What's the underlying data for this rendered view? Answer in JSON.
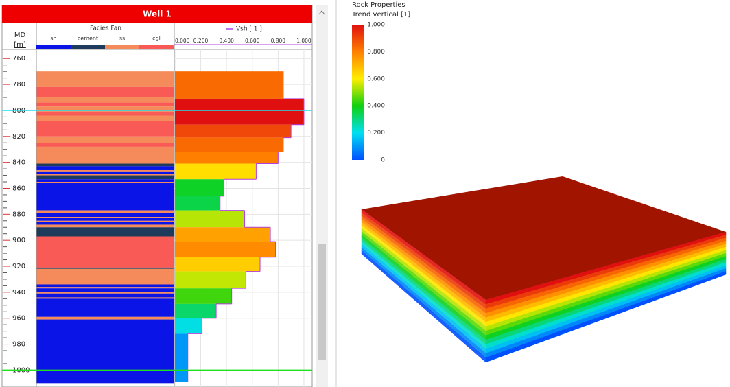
{
  "well_panel": {
    "title": "Well 1",
    "md_label": "MD",
    "md_unit": "[m]",
    "depth_lim": [
      753,
      1013
    ],
    "depth_ticks": [
      760,
      780,
      800,
      820,
      840,
      860,
      880,
      900,
      920,
      940,
      960,
      980,
      1000
    ],
    "markers": [
      {
        "depth": 800,
        "color": "#22dcf0"
      },
      {
        "depth": 1000,
        "color": "#1ee01e"
      }
    ],
    "facies_track": {
      "title": "Facies Fan",
      "legend": [
        {
          "name": "sh",
          "color": "#0a14e6"
        },
        {
          "name": "cement",
          "color": "#1f3b5c"
        },
        {
          "name": "ss",
          "color": "#f58a5a"
        },
        {
          "name": "cgl",
          "color": "#fa5a55"
        }
      ],
      "top": [
        770,
        782,
        790,
        794,
        797,
        801,
        804,
        808,
        820,
        825,
        828,
        841,
        843,
        846,
        847,
        849,
        850,
        853,
        855,
        856,
        877,
        879,
        882,
        883,
        885,
        886,
        888,
        890,
        897,
        913,
        921,
        922,
        934,
        936,
        937,
        940,
        941,
        944,
        945,
        959,
        961
      ],
      "base": [
        782,
        790,
        794,
        797,
        801,
        804,
        808,
        820,
        825,
        828,
        841,
        843,
        846,
        847,
        849,
        850,
        853,
        855,
        856,
        877,
        879,
        882,
        883,
        885,
        886,
        888,
        890,
        897,
        913,
        921,
        922,
        934,
        936,
        937,
        940,
        941,
        944,
        945,
        959,
        961,
        1010
      ],
      "facies": [
        2,
        3,
        2,
        3,
        2,
        3,
        2,
        3,
        2,
        3,
        2,
        1,
        0,
        2,
        0,
        2,
        1,
        0,
        2,
        0,
        2,
        0,
        2,
        0,
        2,
        0,
        2,
        1,
        3,
        3,
        1,
        2,
        0,
        2,
        0,
        2,
        0,
        2,
        0,
        2,
        0
      ]
    },
    "vsh_track": {
      "title": "Vsh [ 1 ]",
      "color": "#b040e0",
      "xlim": [
        -0.005,
        1.064
      ],
      "xticks": [
        {
          "value": 0,
          "label": "0.000"
        },
        {
          "value": 0.2,
          "label": "0.200"
        },
        {
          "value": 0.4,
          "label": "0.400"
        },
        {
          "value": 0.6,
          "label": "0.600"
        },
        {
          "value": 0.8,
          "label": "0.800"
        },
        {
          "value": 1,
          "label": "1.000"
        }
      ],
      "top": [
        770,
        791,
        802,
        811,
        821,
        832,
        841,
        853,
        866,
        877,
        890,
        901,
        913,
        924,
        937,
        949,
        960,
        972
      ],
      "base": [
        791,
        802,
        811,
        821,
        832,
        841,
        853,
        866,
        877,
        890,
        901,
        913,
        924,
        937,
        949,
        960,
        972,
        1009
      ],
      "values": [
        0.84,
        1.0,
        1.0,
        0.9,
        0.84,
        0.8,
        0.63,
        0.38,
        0.35,
        0.54,
        0.74,
        0.78,
        0.66,
        0.55,
        0.44,
        0.32,
        0.21,
        0.1
      ]
    }
  },
  "colorbar": {
    "title": "Rock Properties",
    "subtitle": "Trend vertical [1]",
    "lim": [
      0,
      1
    ],
    "ticks": [
      {
        "value": 1,
        "label": "1.000"
      },
      {
        "value": 0.8,
        "label": "0.800"
      },
      {
        "value": 0.6,
        "label": "0.600"
      },
      {
        "value": 0.4,
        "label": "0.400"
      },
      {
        "value": 0.2,
        "label": "0.200"
      },
      0
    ],
    "colors": [
      "#e01010",
      "#ff8000",
      "#ffee00",
      "#10d010",
      "#00e0f0",
      "#0050ff"
    ]
  }
}
